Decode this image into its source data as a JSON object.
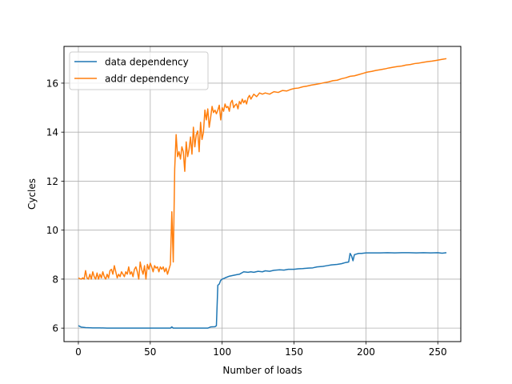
{
  "chart_data": {
    "type": "line",
    "xlabel": "Number of loads",
    "ylabel": "Cycles",
    "xlim": [
      -10,
      266
    ],
    "ylim": [
      5.45,
      17.5
    ],
    "xticks": [
      0,
      50,
      100,
      150,
      200,
      250
    ],
    "yticks": [
      6,
      8,
      10,
      12,
      14,
      16
    ],
    "grid": true,
    "legend_position": "upper-left",
    "series": [
      {
        "name": "data dependency",
        "color": "#1f77b4",
        "points": [
          [
            0,
            6.1
          ],
          [
            2,
            6.04
          ],
          [
            5,
            6.02
          ],
          [
            10,
            6.01
          ],
          [
            15,
            6.01
          ],
          [
            20,
            6.0
          ],
          [
            25,
            6.0
          ],
          [
            30,
            6.0
          ],
          [
            35,
            6.0
          ],
          [
            40,
            6.0
          ],
          [
            45,
            6.0
          ],
          [
            50,
            6.0
          ],
          [
            55,
            6.0
          ],
          [
            60,
            6.0
          ],
          [
            64,
            6.0
          ],
          [
            65,
            6.05
          ],
          [
            66,
            6.0
          ],
          [
            70,
            6.0
          ],
          [
            75,
            6.0
          ],
          [
            80,
            6.0
          ],
          [
            85,
            6.0
          ],
          [
            90,
            6.0
          ],
          [
            92,
            6.05
          ],
          [
            95,
            6.06
          ],
          [
            96,
            6.1
          ],
          [
            97,
            7.75
          ],
          [
            98,
            7.8
          ],
          [
            99,
            7.95
          ],
          [
            100,
            8.0
          ],
          [
            102,
            8.05
          ],
          [
            105,
            8.12
          ],
          [
            110,
            8.18
          ],
          [
            112,
            8.2
          ],
          [
            115,
            8.3
          ],
          [
            118,
            8.28
          ],
          [
            120,
            8.3
          ],
          [
            122,
            8.28
          ],
          [
            125,
            8.32
          ],
          [
            128,
            8.3
          ],
          [
            130,
            8.34
          ],
          [
            133,
            8.32
          ],
          [
            136,
            8.36
          ],
          [
            140,
            8.38
          ],
          [
            143,
            8.37
          ],
          [
            146,
            8.4
          ],
          [
            150,
            8.4
          ],
          [
            153,
            8.42
          ],
          [
            156,
            8.43
          ],
          [
            160,
            8.45
          ],
          [
            163,
            8.46
          ],
          [
            166,
            8.5
          ],
          [
            170,
            8.52
          ],
          [
            173,
            8.55
          ],
          [
            176,
            8.58
          ],
          [
            180,
            8.6
          ],
          [
            183,
            8.63
          ],
          [
            186,
            8.68
          ],
          [
            188,
            8.7
          ],
          [
            189,
            9.05
          ],
          [
            190,
            8.95
          ],
          [
            191,
            8.75
          ],
          [
            192,
            9.0
          ],
          [
            195,
            9.05
          ],
          [
            197,
            9.05
          ],
          [
            200,
            9.07
          ],
          [
            205,
            9.07
          ],
          [
            210,
            9.07
          ],
          [
            215,
            9.08
          ],
          [
            220,
            9.07
          ],
          [
            225,
            9.08
          ],
          [
            230,
            9.08
          ],
          [
            235,
            9.07
          ],
          [
            240,
            9.08
          ],
          [
            245,
            9.07
          ],
          [
            250,
            9.08
          ],
          [
            253,
            9.06
          ],
          [
            256,
            9.08
          ]
        ]
      },
      {
        "name": "addr dependency",
        "color": "#ff7f0e",
        "points": [
          [
            0,
            8.05
          ],
          [
            1,
            8.02
          ],
          [
            2,
            8.0
          ],
          [
            3,
            8.05
          ],
          [
            4,
            8.0
          ],
          [
            5,
            8.35
          ],
          [
            6,
            8.05
          ],
          [
            7,
            8.0
          ],
          [
            8,
            8.2
          ],
          [
            9,
            8.0
          ],
          [
            10,
            8.3
          ],
          [
            11,
            8.1
          ],
          [
            12,
            8.0
          ],
          [
            13,
            8.25
          ],
          [
            14,
            8.0
          ],
          [
            15,
            8.2
          ],
          [
            16,
            8.05
          ],
          [
            17,
            8.3
          ],
          [
            18,
            8.1
          ],
          [
            19,
            8.0
          ],
          [
            20,
            8.2
          ],
          [
            21,
            8.05
          ],
          [
            22,
            8.35
          ],
          [
            23,
            8.4
          ],
          [
            24,
            8.2
          ],
          [
            25,
            8.55
          ],
          [
            26,
            8.3
          ],
          [
            27,
            8.05
          ],
          [
            28,
            8.2
          ],
          [
            29,
            8.1
          ],
          [
            30,
            8.3
          ],
          [
            31,
            8.2
          ],
          [
            32,
            8.1
          ],
          [
            33,
            8.3
          ],
          [
            34,
            8.2
          ],
          [
            35,
            8.5
          ],
          [
            36,
            8.2
          ],
          [
            37,
            8.3
          ],
          [
            38,
            8.1
          ],
          [
            39,
            8.4
          ],
          [
            40,
            8.5
          ],
          [
            41,
            8.3
          ],
          [
            42,
            8.0
          ],
          [
            43,
            8.7
          ],
          [
            44,
            8.4
          ],
          [
            45,
            8.2
          ],
          [
            46,
            8.55
          ],
          [
            47,
            8.0
          ],
          [
            48,
            8.6
          ],
          [
            49,
            8.4
          ],
          [
            50,
            8.65
          ],
          [
            51,
            8.5
          ],
          [
            52,
            8.3
          ],
          [
            53,
            8.55
          ],
          [
            54,
            8.45
          ],
          [
            55,
            8.5
          ],
          [
            56,
            8.3
          ],
          [
            57,
            8.5
          ],
          [
            58,
            8.4
          ],
          [
            59,
            8.5
          ],
          [
            60,
            8.3
          ],
          [
            61,
            8.45
          ],
          [
            62,
            8.2
          ],
          [
            63,
            8.4
          ],
          [
            64,
            8.6
          ],
          [
            65,
            10.75
          ],
          [
            66,
            8.7
          ],
          [
            67,
            12.5
          ],
          [
            68,
            13.9
          ],
          [
            69,
            13.0
          ],
          [
            70,
            13.2
          ],
          [
            71,
            12.9
          ],
          [
            72,
            13.4
          ],
          [
            73,
            13.2
          ],
          [
            74,
            12.4
          ],
          [
            75,
            13.6
          ],
          [
            76,
            13.0
          ],
          [
            77,
            13.3
          ],
          [
            78,
            13.8
          ],
          [
            79,
            13.1
          ],
          [
            80,
            14.2
          ],
          [
            81,
            13.4
          ],
          [
            82,
            13.9
          ],
          [
            83,
            14.05
          ],
          [
            84,
            13.2
          ],
          [
            85,
            14.4
          ],
          [
            86,
            13.7
          ],
          [
            87,
            14.0
          ],
          [
            88,
            14.9
          ],
          [
            89,
            14.5
          ],
          [
            90,
            14.95
          ],
          [
            91,
            14.2
          ],
          [
            92,
            14.6
          ],
          [
            93,
            15.05
          ],
          [
            94,
            14.8
          ],
          [
            95,
            14.9
          ],
          [
            96,
            14.75
          ],
          [
            97,
            14.9
          ],
          [
            98,
            15.1
          ],
          [
            99,
            14.5
          ],
          [
            100,
            15.0
          ],
          [
            101,
            14.85
          ],
          [
            102,
            15.15
          ],
          [
            103,
            15.0
          ],
          [
            104,
            15.05
          ],
          [
            105,
            14.85
          ],
          [
            106,
            15.2
          ],
          [
            107,
            15.3
          ],
          [
            108,
            15.0
          ],
          [
            109,
            15.1
          ],
          [
            110,
            15.15
          ],
          [
            111,
            14.95
          ],
          [
            112,
            15.25
          ],
          [
            113,
            15.15
          ],
          [
            114,
            15.35
          ],
          [
            115,
            15.2
          ],
          [
            116,
            15.3
          ],
          [
            117,
            15.15
          ],
          [
            118,
            15.4
          ],
          [
            119,
            15.5
          ],
          [
            120,
            15.35
          ],
          [
            122,
            15.55
          ],
          [
            124,
            15.45
          ],
          [
            126,
            15.6
          ],
          [
            128,
            15.55
          ],
          [
            130,
            15.6
          ],
          [
            133,
            15.55
          ],
          [
            136,
            15.65
          ],
          [
            139,
            15.62
          ],
          [
            142,
            15.7
          ],
          [
            145,
            15.68
          ],
          [
            148,
            15.75
          ],
          [
            150,
            15.78
          ],
          [
            153,
            15.8
          ],
          [
            156,
            15.85
          ],
          [
            159,
            15.88
          ],
          [
            162,
            15.92
          ],
          [
            165,
            15.95
          ],
          [
            168,
            15.98
          ],
          [
            171,
            16.02
          ],
          [
            174,
            16.05
          ],
          [
            177,
            16.1
          ],
          [
            180,
            16.12
          ],
          [
            183,
            16.18
          ],
          [
            186,
            16.22
          ],
          [
            189,
            16.28
          ],
          [
            192,
            16.3
          ],
          [
            195,
            16.35
          ],
          [
            198,
            16.4
          ],
          [
            201,
            16.45
          ],
          [
            204,
            16.48
          ],
          [
            207,
            16.52
          ],
          [
            210,
            16.55
          ],
          [
            213,
            16.58
          ],
          [
            216,
            16.62
          ],
          [
            219,
            16.65
          ],
          [
            222,
            16.68
          ],
          [
            225,
            16.7
          ],
          [
            228,
            16.74
          ],
          [
            231,
            16.76
          ],
          [
            234,
            16.8
          ],
          [
            237,
            16.82
          ],
          [
            240,
            16.85
          ],
          [
            243,
            16.88
          ],
          [
            246,
            16.9
          ],
          [
            249,
            16.93
          ],
          [
            252,
            16.96
          ],
          [
            254,
            16.98
          ],
          [
            256,
            17.0
          ]
        ]
      }
    ]
  }
}
